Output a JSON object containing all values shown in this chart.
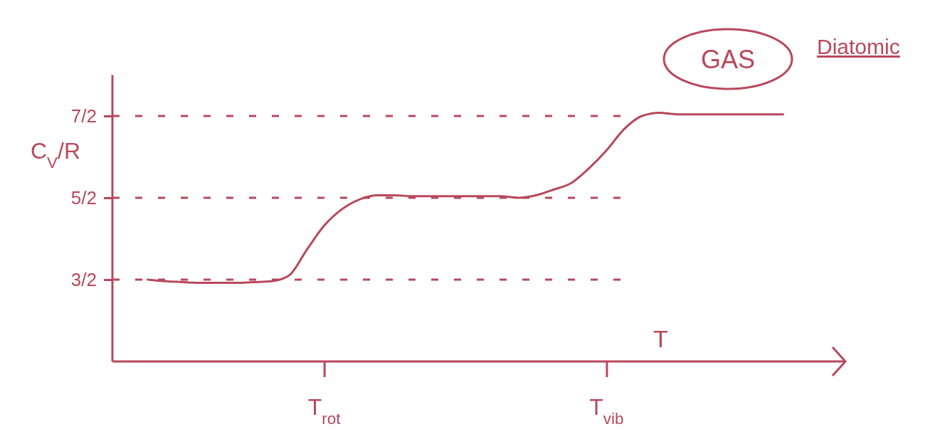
{
  "chart_data": {
    "type": "line",
    "xlabel": "T",
    "ylabel": "C$_{V}$/R",
    "annotations": [
      "GAS",
      "Diatomic"
    ],
    "categories": [
      null,
      null,
      null,
      null,
      null,
      null,
      null,
      null,
      null,
      null,
      null,
      null,
      "T$_{rot}$",
      null,
      null,
      null,
      null,
      null,
      null,
      null,
      null,
      null,
      null,
      null,
      null,
      null,
      null,
      null,
      "T$_{vib}$",
      null,
      null,
      null,
      null,
      null,
      null,
      null,
      null,
      null,
      null,
      null,
      null,
      null
    ],
    "series": [
      {
        "color": "#b8485c",
        "values": [
          null,
          null,
          1.5,
          1.48,
          1.47,
          1.46,
          1.46,
          1.46,
          1.47,
          1.48,
          1.55,
          1.86,
          2.16,
          2.36,
          2.48,
          2.53,
          2.53,
          2.52,
          2.52,
          2.52,
          2.52,
          2.52,
          2.52,
          2.5,
          2.53,
          2.6,
          2.68,
          2.86,
          3.08,
          3.34,
          3.5,
          3.54,
          3.52,
          3.52,
          3.52,
          3.52,
          3.52,
          3.52,
          3.52,
          null,
          null,
          null
        ]
      }
    ],
    "ylim": [
      0.5,
      4
    ],
    "yticks": [
      {
        "value": 1.5,
        "label": "3/2"
      },
      {
        "value": 2.5,
        "label": "5/2"
      },
      {
        "value": 3.5,
        "label": "7/2"
      }
    ],
    "ref_lines": [
      {
        "axis": "y",
        "value": 1.5,
        "line_style": "dashed"
      },
      {
        "axis": "y",
        "value": 2.5,
        "line_style": "dashed"
      },
      {
        "axis": "y",
        "value": 3.5,
        "line_style": "dashed"
      }
    ],
    "grid": false,
    "line_style": "solid"
  }
}
